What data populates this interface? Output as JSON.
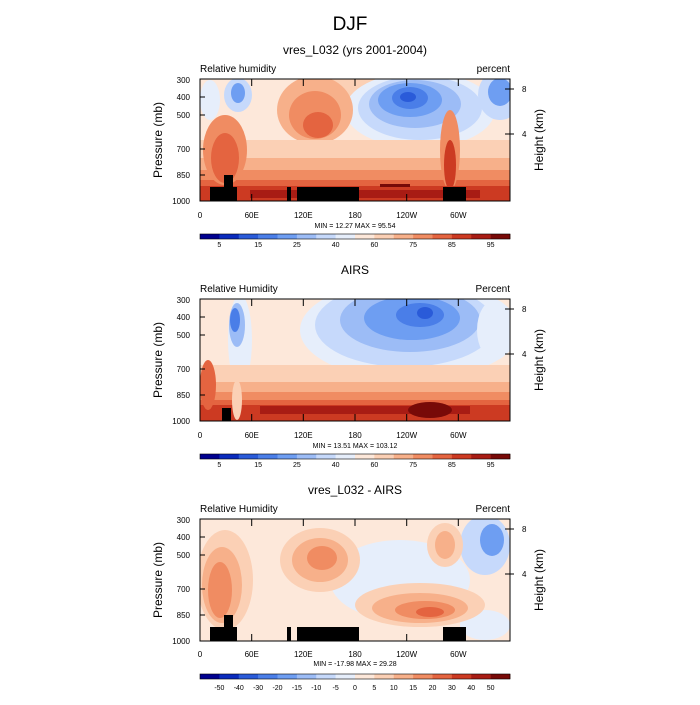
{
  "figure": {
    "title": "DJF"
  },
  "colorbar_ticks": {
    "main": [
      "5",
      "15",
      "25",
      "40",
      "60",
      "75",
      "85",
      "95"
    ],
    "diff": [
      "-50",
      "-40",
      "-30",
      "-20",
      "-15",
      "-10",
      "-5",
      "0",
      "5",
      "10",
      "15",
      "20",
      "30",
      "40",
      "50"
    ]
  },
  "colors": {
    "main": [
      "#00008f",
      "#0a2bbd",
      "#2a5bd9",
      "#4a7ee8",
      "#6e9ef2",
      "#9cbcf6",
      "#c6d9fb",
      "#e6eefb",
      "#fde8da",
      "#fbd0b5",
      "#f7b08a",
      "#f08c62",
      "#e46440",
      "#cc3a22",
      "#a81c14",
      "#780a08"
    ],
    "diff": [
      "#00008f",
      "#0a2bbd",
      "#2a5bd9",
      "#4a7ee8",
      "#6e9ef2",
      "#9cbcf6",
      "#c6d9fb",
      "#e6eefb",
      "#fde8da",
      "#fbd0b5",
      "#f7b08a",
      "#f08c62",
      "#e46440",
      "#cc3a22",
      "#a81c14",
      "#780a08"
    ],
    "terrain": "#000000",
    "axis": "#000000"
  },
  "panels": [
    {
      "title": "vres_L032 (yrs 2001-2004)",
      "left_label": "Relative humidity",
      "right_label": "percent",
      "ylabel": "Pressure (mb)",
      "ylabel_right": "Height (km)",
      "stats": "MIN =  12.27  MAX =  95.54",
      "cbar": "main"
    },
    {
      "title": "AIRS",
      "left_label": "Relative Humidity",
      "right_label": "Percent",
      "ylabel": "Pressure (mb)",
      "ylabel_right": "Height (km)",
      "stats": "MIN =  13.51  MAX = 103.12",
      "cbar": "main"
    },
    {
      "title": "vres_L032 - AIRS",
      "left_label": "Relative Humidity",
      "right_label": "Percent",
      "ylabel": "Pressure (mb)",
      "ylabel_right": "Height (km)",
      "stats": "MIN = -17.98  MAX =  29.28",
      "cbar": "diff"
    }
  ],
  "chart_data": [
    {
      "type": "heatmap",
      "title": "vres_L032 (yrs 2001-2004)",
      "variable": "Relative humidity",
      "units": "percent",
      "x_ticks": [
        "0",
        "60E",
        "120E",
        "180",
        "120W",
        "60W"
      ],
      "x_tick_values": [
        0,
        60,
        120,
        180,
        240,
        300
      ],
      "xlim": [
        0,
        360
      ],
      "y_ticks": [
        "300",
        "400",
        "500",
        "700",
        "850",
        "1000"
      ],
      "y_tick_values": [
        300,
        400,
        500,
        700,
        850,
        1000
      ],
      "ylim": [
        1000,
        300
      ],
      "ylabel": "Pressure (mb)",
      "y2_ticks": [
        "4",
        "8"
      ],
      "y2_tick_values": [
        4,
        8
      ],
      "y2label": "Height (km)",
      "min": 12.27,
      "max": 95.54,
      "levels": [
        5,
        10,
        15,
        20,
        25,
        30,
        40,
        50,
        60,
        70,
        75,
        80,
        85,
        90,
        95
      ],
      "features": [
        {
          "kind": "dry",
          "lon": 250,
          "p": 420,
          "value": 15
        },
        {
          "kind": "dry",
          "lon": 230,
          "p": 480,
          "value": 25
        },
        {
          "kind": "dry",
          "lon": 35,
          "p": 360,
          "value": 20
        },
        {
          "kind": "dry",
          "lon": 330,
          "p": 380,
          "value": 30
        },
        {
          "kind": "moist",
          "lon": 115,
          "p": 450,
          "value": 85
        },
        {
          "kind": "moist",
          "lon": 20,
          "p": 700,
          "value": 88
        },
        {
          "kind": "moist",
          "lon": 280,
          "p": 650,
          "value": 88
        },
        {
          "kind": "moist_band",
          "p": 940,
          "value": 95
        }
      ],
      "terrain": [
        {
          "lon_start": 12,
          "lon_end": 30,
          "p_top": 930
        },
        {
          "lon_start": 30,
          "lon_end": 40,
          "p_top": 870
        },
        {
          "lon_start": 40,
          "lon_end": 50,
          "p_top": 930
        },
        {
          "lon_start": 123,
          "lon_end": 127,
          "p_top": 930
        },
        {
          "lon_start": 133,
          "lon_end": 200,
          "p_top": 930
        },
        {
          "lon_start": 300,
          "lon_end": 325,
          "p_top": 930
        }
      ]
    },
    {
      "type": "heatmap",
      "title": "AIRS",
      "variable": "Relative Humidity",
      "units": "Percent",
      "x_ticks": [
        "0",
        "60E",
        "120E",
        "180",
        "120W",
        "60W"
      ],
      "x_tick_values": [
        0,
        60,
        120,
        180,
        240,
        300
      ],
      "xlim": [
        0,
        360
      ],
      "y_ticks": [
        "300",
        "400",
        "500",
        "700",
        "850",
        "1000"
      ],
      "y_tick_values": [
        300,
        400,
        500,
        700,
        850,
        1000
      ],
      "ylim": [
        1000,
        300
      ],
      "ylabel": "Pressure (mb)",
      "y2_ticks": [
        "4",
        "8"
      ],
      "y2_tick_values": [
        4,
        8
      ],
      "y2label": "Height (km)",
      "min": 13.51,
      "max": 103.12,
      "levels": [
        5,
        10,
        15,
        20,
        25,
        30,
        40,
        50,
        60,
        70,
        75,
        80,
        85,
        90,
        95
      ],
      "features": [
        {
          "kind": "dry",
          "lon": 255,
          "p": 400,
          "value": 15
        },
        {
          "kind": "dry",
          "lon": 40,
          "p": 380,
          "value": 20
        },
        {
          "kind": "dry",
          "lon": 45,
          "p": 600,
          "value": 40
        },
        {
          "kind": "dry",
          "lon": 330,
          "p": 420,
          "value": 40
        },
        {
          "kind": "moist_band",
          "p": 950,
          "value": 95
        },
        {
          "kind": "moist",
          "lon": 270,
          "p": 960,
          "value": 95
        },
        {
          "kind": "moist",
          "lon": 5,
          "p": 800,
          "value": 85
        }
      ],
      "terrain": [
        {
          "lon_start": 25,
          "lon_end": 35,
          "p_top": 920
        }
      ]
    },
    {
      "type": "heatmap",
      "title": "vres_L032 - AIRS",
      "variable": "Relative Humidity",
      "units": "Percent",
      "x_ticks": [
        "0",
        "60E",
        "120E",
        "180",
        "120W",
        "60W"
      ],
      "x_tick_values": [
        0,
        60,
        120,
        180,
        240,
        300
      ],
      "xlim": [
        0,
        360
      ],
      "y_ticks": [
        "300",
        "400",
        "500",
        "700",
        "850",
        "1000"
      ],
      "y_tick_values": [
        300,
        400,
        500,
        700,
        850,
        1000
      ],
      "ylim": [
        1000,
        300
      ],
      "ylabel": "Pressure (mb)",
      "y2_ticks": [
        "4",
        "8"
      ],
      "y2_tick_values": [
        4,
        8
      ],
      "y2label": "Height (km)",
      "min": -17.98,
      "max": 29.28,
      "levels": [
        -50,
        -40,
        -30,
        -20,
        -15,
        -10,
        -5,
        0,
        5,
        10,
        15,
        20,
        30,
        40,
        50
      ],
      "features": [
        {
          "kind": "pos",
          "lon": 25,
          "p": 650,
          "value": 20
        },
        {
          "kind": "pos",
          "lon": 125,
          "p": 520,
          "value": 20
        },
        {
          "kind": "pos",
          "lon": 250,
          "p": 820,
          "value": 25
        },
        {
          "kind": "pos",
          "lon": 300,
          "p": 400,
          "value": 15
        },
        {
          "kind": "neg",
          "lon": 345,
          "p": 380,
          "value": -15
        },
        {
          "kind": "neg",
          "lon": 215,
          "p": 550,
          "value": -5
        },
        {
          "kind": "neg",
          "lon": 335,
          "p": 950,
          "value": -5
        }
      ],
      "terrain": [
        {
          "lon_start": 12,
          "lon_end": 30,
          "p_top": 930
        },
        {
          "lon_start": 30,
          "lon_end": 40,
          "p_top": 870
        },
        {
          "lon_start": 40,
          "lon_end": 50,
          "p_top": 930
        },
        {
          "lon_start": 123,
          "lon_end": 127,
          "p_top": 930
        },
        {
          "lon_start": 133,
          "lon_end": 200,
          "p_top": 930
        },
        {
          "lon_start": 300,
          "lon_end": 325,
          "p_top": 930
        }
      ]
    }
  ]
}
